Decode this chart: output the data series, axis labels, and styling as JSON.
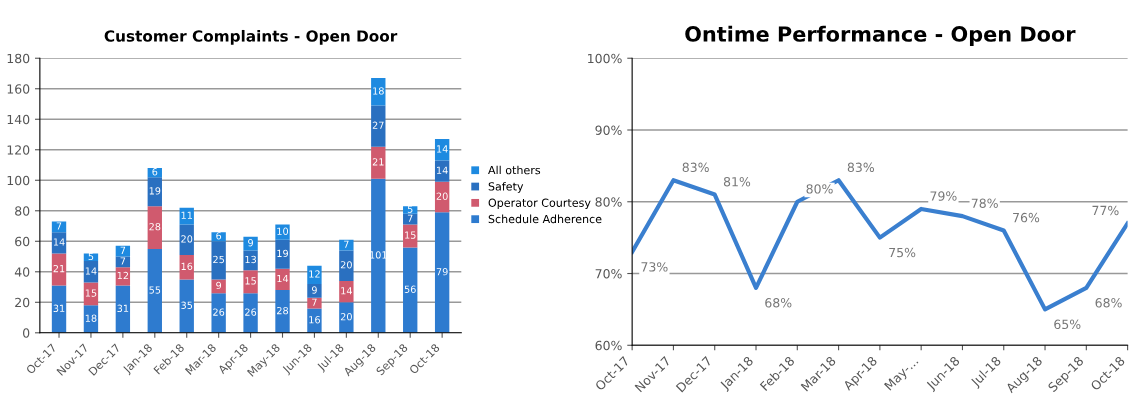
{
  "chart_data": [
    {
      "type": "bar",
      "title": "Customer Complaints - Open Door",
      "stacked": true,
      "categories": [
        "Oct-17",
        "Nov-17",
        "Dec-17",
        "Jan-18",
        "Feb-18",
        "Mar-18",
        "Apr-18",
        "May-18",
        "Jun-18",
        "Jul-18",
        "Aug-18",
        "Sep-18",
        "Oct-18"
      ],
      "series": [
        {
          "name": "Schedule Adherence",
          "color": "#2e7bcf",
          "values": [
            31,
            18,
            31,
            55,
            35,
            26,
            26,
            28,
            16,
            20,
            101,
            56,
            79
          ]
        },
        {
          "name": "Operator Courtesy",
          "color": "#d05a6e",
          "values": [
            21,
            15,
            12,
            28,
            16,
            9,
            15,
            14,
            7,
            14,
            21,
            15,
            20
          ]
        },
        {
          "name": "Safety",
          "color": "#2a70c0",
          "values": [
            14,
            14,
            7,
            19,
            20,
            25,
            13,
            19,
            9,
            20,
            27,
            7,
            14
          ]
        },
        {
          "name": "All others",
          "color": "#1e8ae0",
          "values": [
            7,
            5,
            7,
            6,
            11,
            6,
            9,
            10,
            12,
            7,
            18,
            5,
            14
          ]
        }
      ],
      "ylim": [
        0,
        180
      ],
      "yticks": [
        0,
        20,
        40,
        60,
        80,
        100,
        120,
        140,
        160,
        180
      ],
      "grid": "y",
      "legend": "right",
      "data_labels": true
    },
    {
      "type": "line",
      "title": "Ontime Performance - Open Door",
      "categories": [
        "Oct-17",
        "Nov-17",
        "Dec-17",
        "Jan-18",
        "Feb-18",
        "Mar-18",
        "Apr-18",
        "May-...",
        "Jun-18",
        "Jul-18",
        "Aug-18",
        "Sep-18",
        "Oct-18"
      ],
      "series": [
        {
          "color": "#3a7fcf",
          "values": [
            73,
            83,
            81,
            68,
            80,
            83,
            75,
            79,
            78,
            76,
            65,
            68,
            77
          ],
          "value_labels": [
            "73%",
            "83%",
            "81%",
            "68%",
            "80%",
            "83%",
            "75%",
            "79%",
            "78%",
            "76%",
            "65%",
            "68%",
            "77%"
          ]
        }
      ],
      "ylim": [
        60,
        100
      ],
      "yticks": [
        {
          "value": 60,
          "label": "60%"
        },
        {
          "value": 70,
          "label": "70%"
        },
        {
          "value": 80,
          "label": "80%"
        },
        {
          "value": 90,
          "label": "90%"
        },
        {
          "value": 100,
          "label": "100%"
        }
      ],
      "grid": "y",
      "marker": "none",
      "line_style": "solid"
    }
  ]
}
